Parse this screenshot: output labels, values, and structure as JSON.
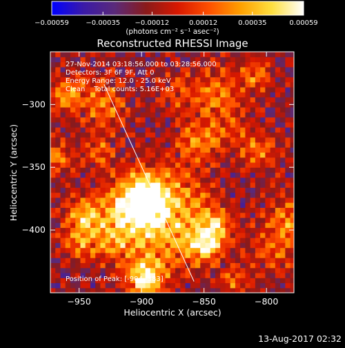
{
  "chart_data": {
    "type": "heatmap",
    "title": "Reconstructed RHESSI Image",
    "xlabel": "Heliocentric X (arcsec)",
    "ylabel": "Heliocentric Y (arcsec)",
    "xlim": [
      -973,
      -778
    ],
    "ylim": [
      -450,
      -258
    ],
    "x_ticks": [
      -950,
      -900,
      -850,
      -800
    ],
    "y_ticks": [
      -300,
      -350,
      -400
    ],
    "x_tick_labels": [
      "−950",
      "−900",
      "−850",
      "−800"
    ],
    "y_tick_labels": [
      "−300",
      "−350",
      "−400"
    ],
    "colorbar": {
      "range": [
        -0.00059,
        0.00059
      ],
      "tick_values": [
        -0.00059,
        -0.00035,
        -0.00012,
        0.00012,
        0.00035,
        0.00059
      ],
      "tick_labels": [
        "−0.00059",
        "−0.00035",
        "−0.00012",
        "0.00012",
        "0.00035",
        "0.00059"
      ],
      "unit_label": "(photons cm⁻² s⁻¹ asec⁻²)",
      "colormap": [
        "#0000ff",
        "#3a1aa8",
        "#5a2a7a",
        "#8a1a1a",
        "#d81800",
        "#ff5000",
        "#ffa000",
        "#ffe040",
        "#ffffff"
      ]
    },
    "annotations": [
      "27-Nov-2014 03:18:56.000 to 03:28:56.000",
      "Detectors: 3F 6F 9F, Att 0",
      "Energy Range: 12.0 - 25.0 keV",
      "Clean    Total counts: 5.16E+03"
    ],
    "peak_label": "Position of Peak: [-904,-383]",
    "peak": {
      "x": -904,
      "y": -383
    },
    "overlay_line": {
      "x": [
        -930,
        -858
      ],
      "y": [
        -284,
        -441
      ]
    },
    "grid": false,
    "legend": "none"
  },
  "footer": {
    "timestamp": "13-Aug-2017 02:32"
  }
}
